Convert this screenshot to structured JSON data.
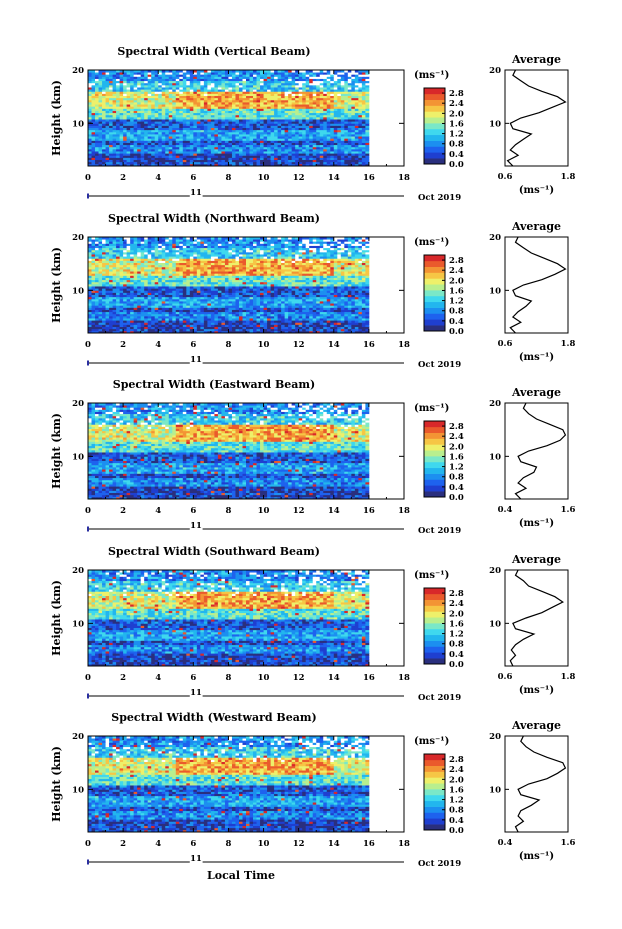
{
  "figure": {
    "x_axis_label": "Local Time",
    "day_label": "11",
    "month_label": "Oct 2019",
    "y_axis_label": "Height (km)",
    "unit_label": "(ms⁻¹)",
    "average_label": "Average",
    "x_ticks": [
      "0",
      "2",
      "4",
      "6",
      "8",
      "10",
      "12",
      "14",
      "16",
      "18"
    ],
    "y_ticks": [
      "20",
      "10"
    ],
    "colorbar_ticks": [
      "2.8",
      "2.4",
      "2.0",
      "1.6",
      "1.2",
      "0.8",
      "0.4",
      "0.0"
    ],
    "colormap": [
      "#2a2f7e",
      "#1f3fd0",
      "#1e62ee",
      "#1c8ff0",
      "#22b6ee",
      "#3fd8ee",
      "#7ae8c8",
      "#b9ef8e",
      "#eef06a",
      "#f6c645",
      "#f39434",
      "#ea5a2c",
      "#d8282a"
    ]
  },
  "chart_data": [
    {
      "type": "heatmap",
      "title": "Spectral Width (Vertical Beam)",
      "xlim": [
        0,
        18
      ],
      "ylim": [
        2,
        20
      ],
      "x_ticks": [
        0,
        2,
        4,
        6,
        8,
        10,
        12,
        14,
        16,
        18
      ],
      "y_ticks": [
        10,
        20
      ],
      "colorbar_range": [
        0.0,
        3.0
      ],
      "colorbar_ticks": [
        0.0,
        0.4,
        0.8,
        1.2,
        1.6,
        2.0,
        2.4,
        2.8
      ],
      "data_extent_hours": [
        0,
        16
      ],
      "height_km": [
        3,
        5,
        7,
        9,
        11,
        13,
        15,
        17,
        19
      ],
      "layer_width_ms": [
        0.4,
        0.7,
        0.5,
        0.9,
        0.5,
        1.5,
        2.0,
        1.2,
        0.8
      ],
      "average_profile": {
        "xlabel": "(ms⁻¹)",
        "title": "Average",
        "xlim": [
          0.6,
          1.8
        ],
        "x_ticks": [
          0.6,
          1.8
        ],
        "y_ticks": [
          10,
          20
        ],
        "height_km": [
          2,
          3,
          4,
          5,
          6,
          7,
          8,
          9,
          10,
          11,
          12,
          13,
          14,
          15,
          16,
          17,
          18,
          19,
          20
        ],
        "width_ms": [
          0.75,
          0.65,
          0.85,
          0.7,
          0.8,
          0.95,
          1.1,
          0.75,
          0.7,
          0.9,
          1.25,
          1.5,
          1.75,
          1.6,
          1.3,
          1.05,
          0.9,
          0.75,
          0.8
        ]
      }
    },
    {
      "type": "heatmap",
      "title": "Spectral Width (Northward Beam)",
      "xlim": [
        0,
        18
      ],
      "ylim": [
        2,
        20
      ],
      "x_ticks": [
        0,
        2,
        4,
        6,
        8,
        10,
        12,
        14,
        16,
        18
      ],
      "y_ticks": [
        10,
        20
      ],
      "colorbar_range": [
        0.0,
        3.0
      ],
      "colorbar_ticks": [
        0.0,
        0.4,
        0.8,
        1.2,
        1.6,
        2.0,
        2.4,
        2.8
      ],
      "data_extent_hours": [
        0,
        16
      ],
      "height_km": [
        3,
        5,
        7,
        9,
        11,
        13,
        15,
        17,
        19
      ],
      "layer_width_ms": [
        0.5,
        0.8,
        0.6,
        1.0,
        0.6,
        1.6,
        2.0,
        1.3,
        0.9
      ],
      "average_profile": {
        "xlabel": "(ms⁻¹)",
        "title": "Average",
        "xlim": [
          0.6,
          1.8
        ],
        "x_ticks": [
          0.6,
          1.8
        ],
        "y_ticks": [
          10,
          20
        ],
        "height_km": [
          2,
          3,
          4,
          5,
          6,
          7,
          8,
          9,
          10,
          11,
          12,
          13,
          14,
          15,
          16,
          17,
          18,
          19,
          20
        ],
        "width_ms": [
          0.8,
          0.7,
          0.9,
          0.75,
          0.85,
          1.0,
          1.1,
          0.8,
          0.75,
          0.95,
          1.3,
          1.55,
          1.75,
          1.6,
          1.35,
          1.1,
          0.95,
          0.8,
          0.85
        ]
      }
    },
    {
      "type": "heatmap",
      "title": "Spectral Width (Eastward Beam)",
      "xlim": [
        0,
        18
      ],
      "ylim": [
        2,
        20
      ],
      "x_ticks": [
        0,
        2,
        4,
        6,
        8,
        10,
        12,
        14,
        16,
        18
      ],
      "y_ticks": [
        10,
        20
      ],
      "colorbar_range": [
        0.0,
        3.0
      ],
      "colorbar_ticks": [
        0.0,
        0.4,
        0.8,
        1.2,
        1.6,
        2.0,
        2.4,
        2.8
      ],
      "data_extent_hours": [
        0,
        16
      ],
      "height_km": [
        3,
        5,
        7,
        9,
        11,
        13,
        15,
        17,
        19
      ],
      "layer_width_ms": [
        0.5,
        0.9,
        0.6,
        1.0,
        0.6,
        1.6,
        2.1,
        1.3,
        0.9
      ],
      "average_profile": {
        "xlabel": "(ms⁻¹)",
        "title": "Average",
        "xlim": [
          0.4,
          1.6
        ],
        "x_ticks": [
          0.4,
          1.6
        ],
        "y_ticks": [
          10,
          20
        ],
        "height_km": [
          2,
          3,
          4,
          5,
          6,
          7,
          8,
          9,
          10,
          11,
          12,
          13,
          14,
          15,
          16,
          17,
          18,
          19,
          20
        ],
        "width_ms": [
          0.7,
          0.6,
          0.8,
          0.65,
          0.75,
          0.95,
          1.0,
          0.7,
          0.65,
          0.85,
          1.2,
          1.45,
          1.55,
          1.5,
          1.25,
          1.0,
          0.85,
          0.75,
          0.8
        ]
      }
    },
    {
      "type": "heatmap",
      "title": "Spectral Width (Southward Beam)",
      "xlim": [
        0,
        18
      ],
      "ylim": [
        2,
        20
      ],
      "x_ticks": [
        0,
        2,
        4,
        6,
        8,
        10,
        12,
        14,
        16,
        18
      ],
      "y_ticks": [
        10,
        20
      ],
      "colorbar_range": [
        0.0,
        3.0
      ],
      "colorbar_ticks": [
        0.0,
        0.4,
        0.8,
        1.2,
        1.6,
        2.0,
        2.4,
        2.8
      ],
      "data_extent_hours": [
        0,
        16
      ],
      "height_km": [
        3,
        5,
        7,
        9,
        11,
        13,
        15,
        17,
        19
      ],
      "layer_width_ms": [
        0.4,
        0.7,
        0.5,
        1.1,
        0.6,
        1.5,
        2.0,
        1.3,
        0.8
      ],
      "average_profile": {
        "xlabel": "(ms⁻¹)",
        "title": "Average",
        "xlim": [
          0.6,
          1.8
        ],
        "x_ticks": [
          0.6,
          1.8
        ],
        "y_ticks": [
          10,
          20
        ],
        "height_km": [
          2,
          3,
          4,
          5,
          6,
          7,
          8,
          9,
          10,
          11,
          12,
          13,
          14,
          15,
          16,
          17,
          18,
          19,
          20
        ],
        "width_ms": [
          0.75,
          0.7,
          0.8,
          0.72,
          0.8,
          0.95,
          1.15,
          0.8,
          0.75,
          1.0,
          1.3,
          1.5,
          1.7,
          1.55,
          1.3,
          1.05,
          0.95,
          0.8,
          0.85
        ]
      }
    },
    {
      "type": "heatmap",
      "title": "Spectral Width (Westward Beam)",
      "xlim": [
        0,
        18
      ],
      "ylim": [
        2,
        20
      ],
      "x_ticks": [
        0,
        2,
        4,
        6,
        8,
        10,
        12,
        14,
        16,
        18
      ],
      "y_ticks": [
        10,
        20
      ],
      "colorbar_range": [
        0.0,
        3.0
      ],
      "colorbar_ticks": [
        0.0,
        0.4,
        0.8,
        1.2,
        1.6,
        2.0,
        2.4,
        2.8
      ],
      "data_extent_hours": [
        0,
        16
      ],
      "height_km": [
        3,
        5,
        7,
        9,
        11,
        13,
        15,
        17,
        19
      ],
      "layer_width_ms": [
        0.5,
        0.8,
        0.6,
        1.0,
        0.6,
        1.6,
        2.0,
        1.3,
        0.9
      ],
      "average_profile": {
        "xlabel": "(ms⁻¹)",
        "title": "Average",
        "xlim": [
          0.4,
          1.6
        ],
        "x_ticks": [
          0.4,
          1.6
        ],
        "y_ticks": [
          10,
          20
        ],
        "height_km": [
          2,
          3,
          4,
          5,
          6,
          7,
          8,
          9,
          10,
          11,
          12,
          13,
          14,
          15,
          16,
          17,
          18,
          19,
          20
        ],
        "width_ms": [
          0.65,
          0.6,
          0.75,
          0.65,
          0.7,
          0.9,
          1.05,
          0.7,
          0.65,
          0.85,
          1.2,
          1.4,
          1.55,
          1.5,
          1.2,
          0.95,
          0.8,
          0.7,
          0.75
        ]
      }
    }
  ]
}
